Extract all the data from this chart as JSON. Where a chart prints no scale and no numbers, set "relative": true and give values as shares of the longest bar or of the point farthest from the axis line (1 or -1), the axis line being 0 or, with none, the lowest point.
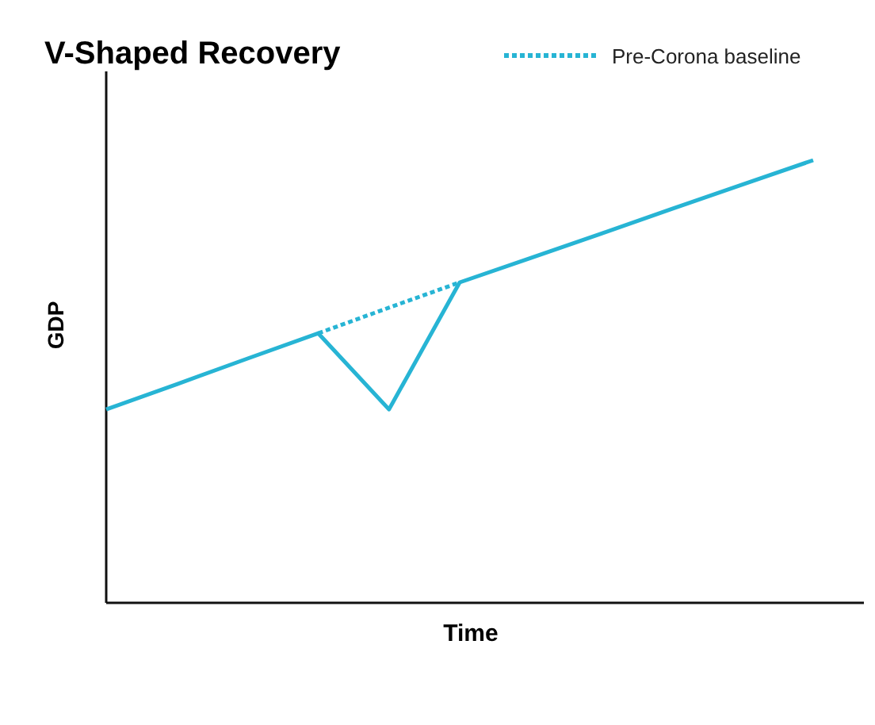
{
  "chart_data": {
    "type": "line",
    "title": "V-Shaped Recovery",
    "xlabel": "Time",
    "ylabel": "GDP",
    "relative": true,
    "categories": [
      null,
      null,
      null,
      null,
      null,
      null,
      null,
      null,
      null,
      null,
      null
    ],
    "series": [
      {
        "color": "#27b4d4",
        "line_style": "solid",
        "values": [
          0.437,
          0.494,
          0.552,
          0.609,
          0.437,
          0.724,
          0.779,
          0.834,
          0.89,
          0.945,
          1
        ]
      },
      {
        "name": "Pre-Corona baseline",
        "color": "#27b4d4",
        "line_style": "dotted",
        "values": [
          null,
          null,
          null,
          0.609,
          0.667,
          0.724,
          null,
          null,
          null,
          null,
          null
        ]
      }
    ],
    "legend": "top right",
    "marker": "none"
  }
}
